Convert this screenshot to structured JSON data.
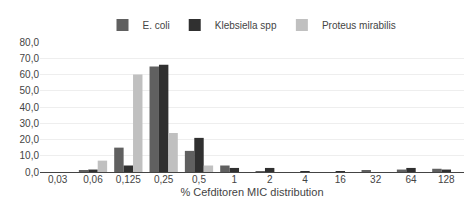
{
  "chart_data": {
    "type": "bar",
    "xlabel": "% Cefditoren MIC distribution",
    "categories": [
      "0,03",
      "0,06",
      "0,125",
      "0,25",
      "0,5",
      "1",
      "2",
      "4",
      "16",
      "32",
      "64",
      "128"
    ],
    "series": [
      {
        "name": "E. coli",
        "color": "#606060",
        "values": [
          0.0,
          1.0,
          15.0,
          65.0,
          13.0,
          4.0,
          0.5,
          0.0,
          0.0,
          1.0,
          1.5,
          2.0
        ]
      },
      {
        "name": "Klebsiella spp",
        "color": "#303030",
        "values": [
          0.0,
          1.5,
          4.0,
          66.0,
          21.0,
          2.5,
          2.5,
          0.5,
          0.5,
          0.0,
          2.5,
          1.5
        ]
      },
      {
        "name": "Proteus mirabilis",
        "color": "#c0c0c0",
        "values": [
          0.0,
          7.0,
          60.0,
          24.0,
          4.0,
          0.0,
          0.0,
          0.0,
          0.0,
          0.0,
          0.0,
          0.0
        ]
      }
    ],
    "ylim": [
      0,
      80
    ],
    "yticks": [
      {
        "value": 0.0,
        "label": "0,0"
      },
      {
        "value": 10.0,
        "label": "10,0"
      },
      {
        "value": 20.0,
        "label": "20,0"
      },
      {
        "value": 30.0,
        "label": "30,0"
      },
      {
        "value": 40.0,
        "label": "40,0"
      },
      {
        "value": 50.0,
        "label": "50,0"
      },
      {
        "value": 60.0,
        "label": "60,0"
      },
      {
        "value": 70.0,
        "label": "70,0"
      },
      {
        "value": 80.0,
        "label": "80,0"
      }
    ],
    "grid": true,
    "legend": "top"
  }
}
